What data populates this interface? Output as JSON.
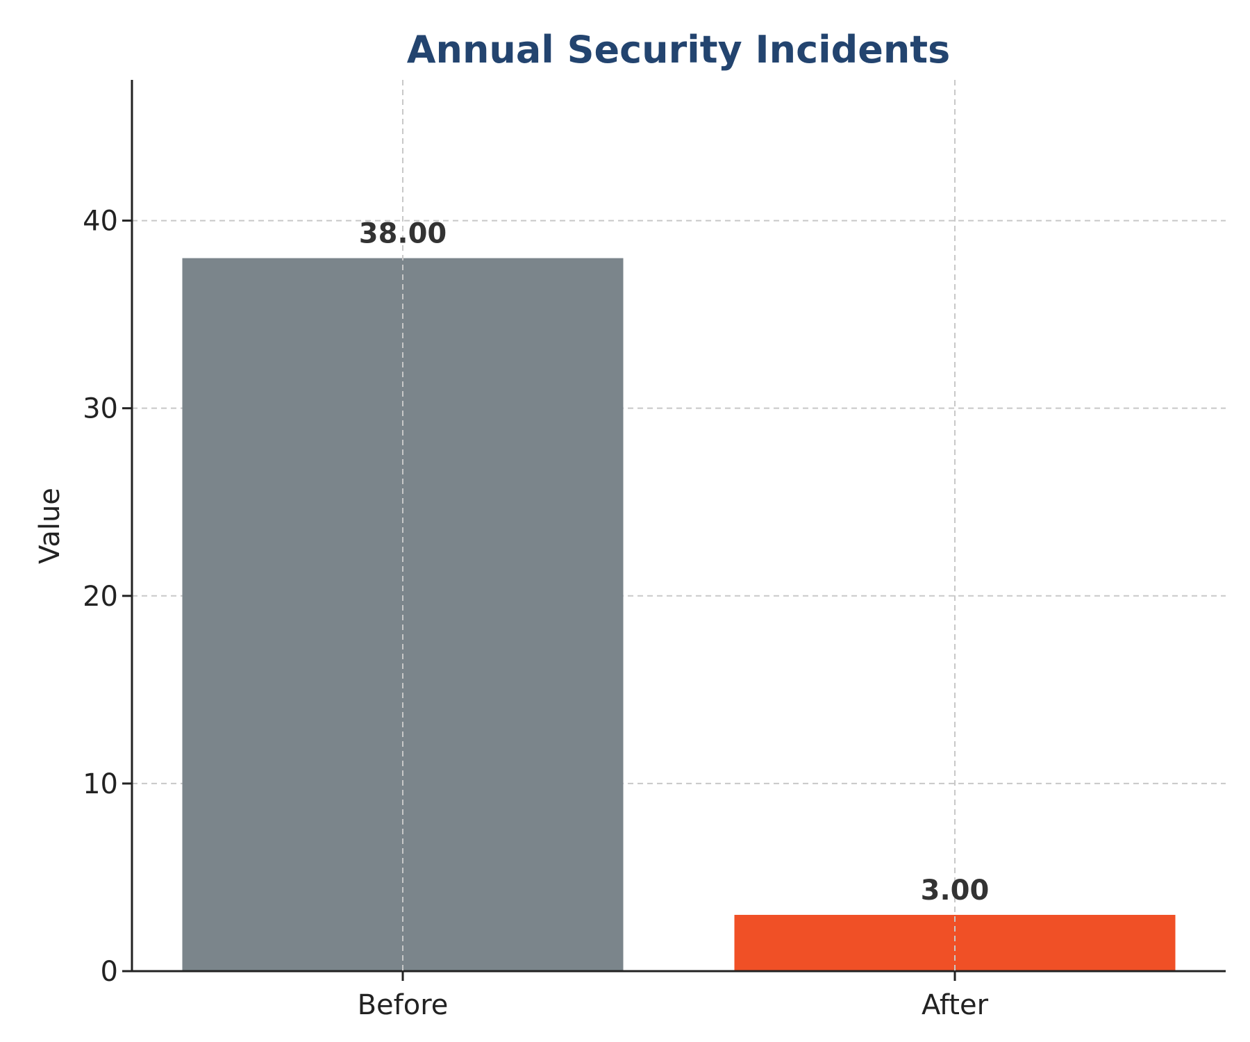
{
  "chart_data": {
    "type": "bar",
    "title": "Annual Security Incidents",
    "xlabel": "",
    "ylabel": "Value",
    "categories": [
      "Before",
      "After"
    ],
    "values": [
      38,
      3
    ],
    "value_labels": [
      "38.00",
      "3.00"
    ],
    "yticks": [
      0,
      10,
      20,
      30,
      40
    ],
    "ylim": [
      0,
      47.5
    ],
    "grid": true,
    "legend": "none",
    "colors": {
      "bars": [
        "#7b858b",
        "#f05026"
      ],
      "title": "#23446f",
      "axis": "#222222",
      "grid": "#c8c8c8"
    }
  }
}
